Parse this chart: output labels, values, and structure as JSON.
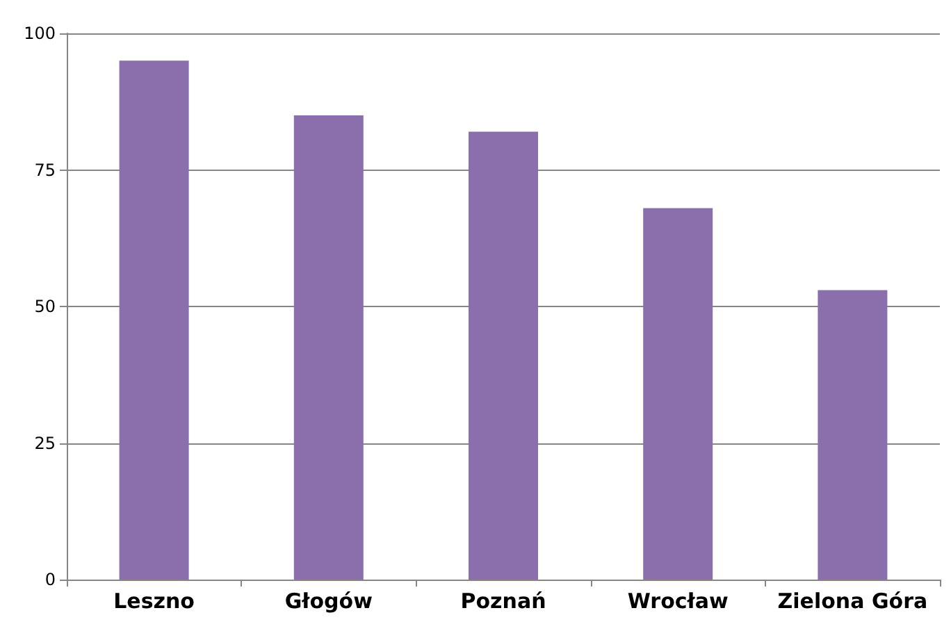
{
  "chart_data": {
    "type": "bar",
    "categories": [
      "Leszno",
      "Głogów",
      "Poznań",
      "Wrocław",
      "Zielona Góra"
    ],
    "values": [
      95,
      85,
      82,
      68,
      53
    ],
    "color": "#8a6fac",
    "ylim": [
      0,
      100
    ],
    "yticks": [
      0,
      25,
      50,
      75,
      100
    ],
    "grid": "y"
  }
}
